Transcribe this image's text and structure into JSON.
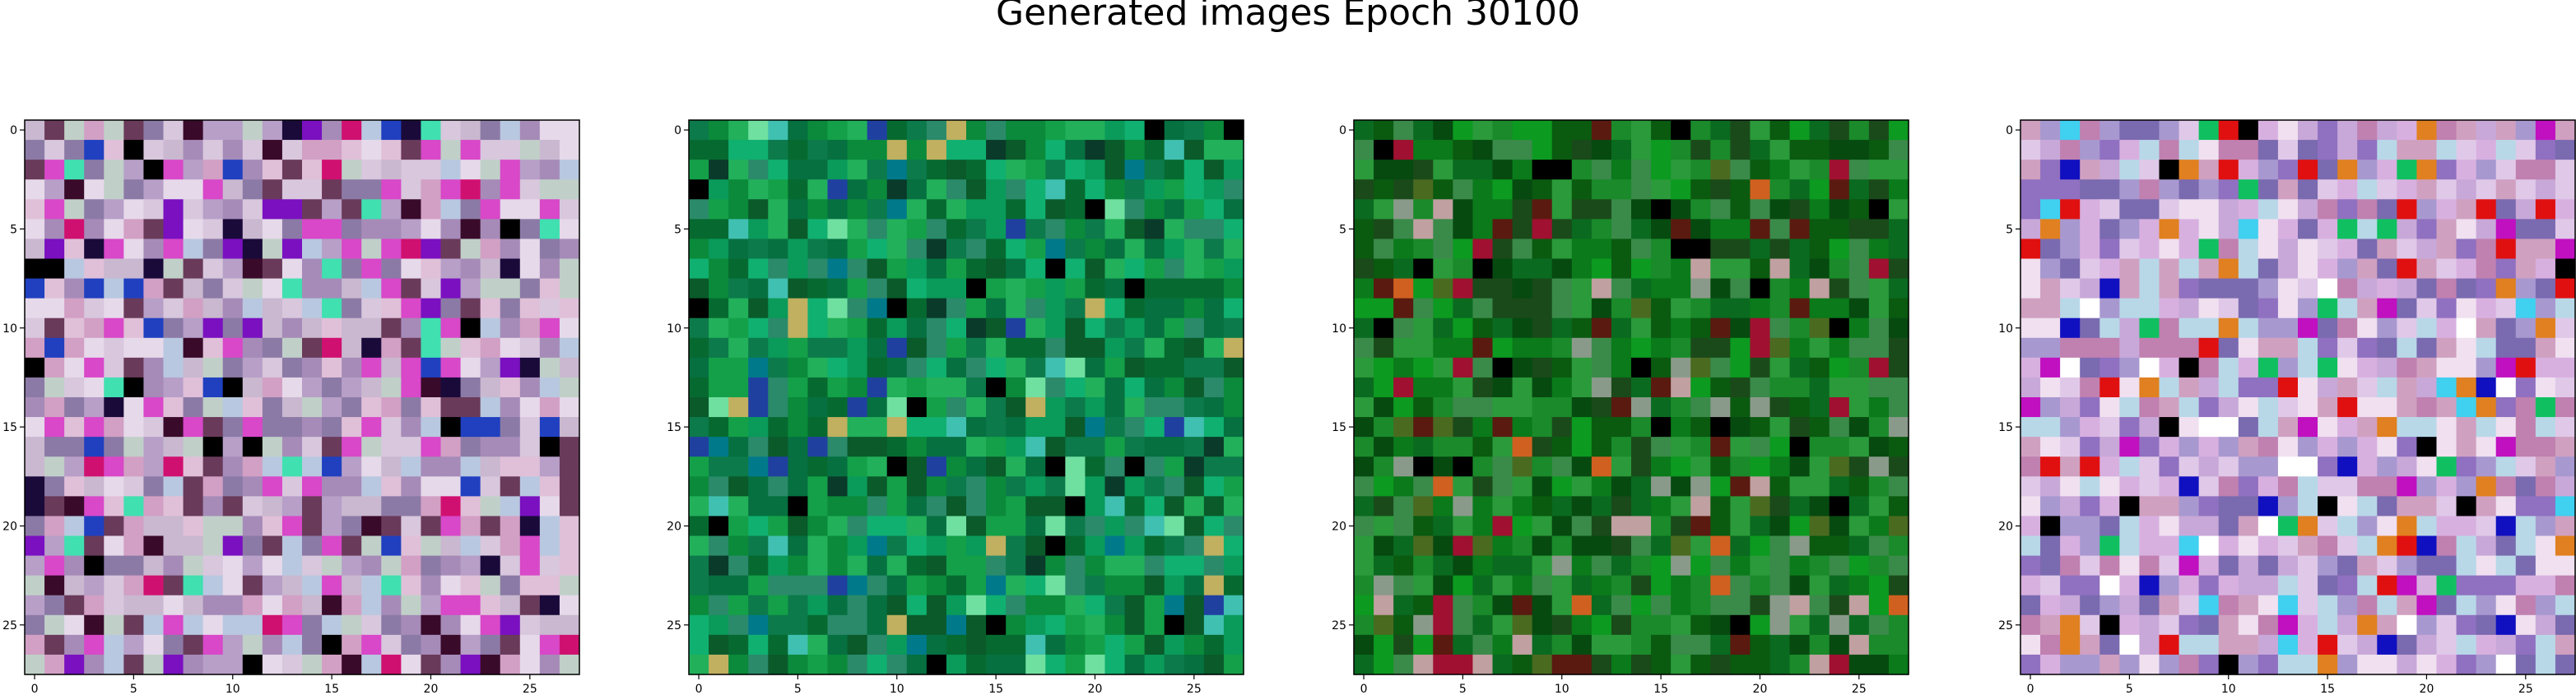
{
  "figure": {
    "title": "Generated images Epoch 30100"
  },
  "chart_data": {
    "type": "heatmap",
    "title": "Generated images Epoch 30100",
    "panels": [
      {
        "name": "",
        "grid": [
          28,
          28
        ],
        "xticks": [
          0,
          5,
          10,
          15,
          20,
          25
        ],
        "yticks": [
          0,
          5,
          10,
          15,
          20,
          25
        ],
        "xlim": [
          -0.5,
          27.5
        ],
        "ylim": [
          27.5,
          -0.5
        ],
        "palette": [
          "#c9b8cf",
          "#b79fc8",
          "#d8c7dd",
          "#e6d9ea",
          "#a68bb8",
          "#c0d0c8",
          "#d2a0c4",
          "#8c7aa6",
          "#e0c0d8",
          "#b8c8e0",
          "#6a3a5a",
          "#d848c8"
        ],
        "accents": [
          "#000000",
          "#3a0a2a",
          "#1a0a3a",
          "#7a10c0",
          "#40e0b0",
          "#2040c0",
          "#d01070"
        ]
      },
      {
        "name": "",
        "grid": [
          28,
          28
        ],
        "xticks": [
          0,
          5,
          10,
          15,
          20,
          25
        ],
        "yticks": [
          0,
          5,
          10,
          15,
          20,
          25
        ],
        "xlim": [
          -0.5,
          27.5
        ],
        "ylim": [
          27.5,
          -0.5
        ],
        "palette": [
          "#0a8a3a",
          "#066a30",
          "#14a048",
          "#0c7a4a",
          "#0a5a2a",
          "#22b05a",
          "#0a9a5a",
          "#2a8a6a",
          "#067040",
          "#10b070"
        ],
        "accents": [
          "#000000",
          "#0a3a2a",
          "#40c0b0",
          "#70e0a0",
          "#2040a0",
          "#c0b060",
          "#007a8a"
        ]
      },
      {
        "name": "",
        "grid": [
          28,
          28
        ],
        "xticks": [
          0,
          5,
          10,
          15,
          20,
          25
        ],
        "yticks": [
          0,
          5,
          10,
          15,
          20,
          25
        ],
        "xlim": [
          -0.5,
          27.5
        ],
        "ylim": [
          27.5,
          -0.5
        ],
        "palette": [
          "#0a7a1a",
          "#0a5a10",
          "#1a8a2a",
          "#064a10",
          "#2a9a3a",
          "#0a6a20",
          "#3a8a4a",
          "#1a4a1a",
          "#0c9a20"
        ],
        "accents": [
          "#000000",
          "#a01030",
          "#d06020",
          "#5a1a10",
          "#8a9a8a",
          "#4a6a20",
          "#c0a0a0"
        ]
      },
      {
        "name": "",
        "grid": [
          28,
          28
        ],
        "xticks": [
          0,
          5,
          10,
          15,
          20,
          25
        ],
        "yticks": [
          0,
          5,
          10,
          15,
          20,
          25
        ],
        "xlim": [
          -0.5,
          27.5
        ],
        "ylim": [
          27.5,
          -0.5
        ],
        "palette": [
          "#c8a8d8",
          "#d8b0e0",
          "#a898d0",
          "#e0c8e8",
          "#b8d8e8",
          "#c080b0",
          "#9070c0",
          "#f0e0f0",
          "#d0a0c0",
          "#7a6ab0"
        ],
        "accents": [
          "#000000",
          "#e01010",
          "#1010c0",
          "#10c060",
          "#e08020",
          "#c010c0",
          "#40d0f0",
          "#ffffff"
        ]
      }
    ]
  }
}
